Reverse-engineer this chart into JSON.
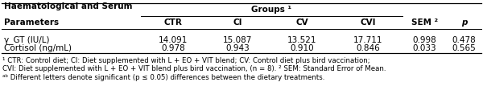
{
  "group_header": "Groups ¹",
  "col_headers": [
    "CTR",
    "CI",
    "CV",
    "CVI",
    "SEM ²",
    "p"
  ],
  "header_line1": "Haematological and Serum",
  "header_line2": "Parameters",
  "rows": [
    {
      "label": "γ_GT (IU/L)",
      "values": [
        "14.091",
        "15.087",
        "13.521",
        "17.711",
        "0.998",
        "0.478"
      ]
    },
    {
      "label": "Cortisol (ng/mL)",
      "values": [
        "0.978",
        "0.943",
        "0.910",
        "0.846",
        "0.033",
        "0.565"
      ]
    }
  ],
  "footnotes": [
    "¹ CTR: Control diet; CI: Diet supplemented with L + EO + VIT blend; CV: Control diet plus bird vaccination;",
    "CVI: Diet supplemented with L + EO + VIT blend plus bird vaccination, (n = 8). ² SEM: Standard Error of Mean.",
    "ᵃᵇ Different letters denote significant (p ≤ 0.05) differences between the dietary treatments."
  ],
  "background_color": "#ffffff",
  "text_color": "#000000",
  "border_color": "#000000",
  "font_size": 7.5,
  "footnote_font_size": 6.2
}
